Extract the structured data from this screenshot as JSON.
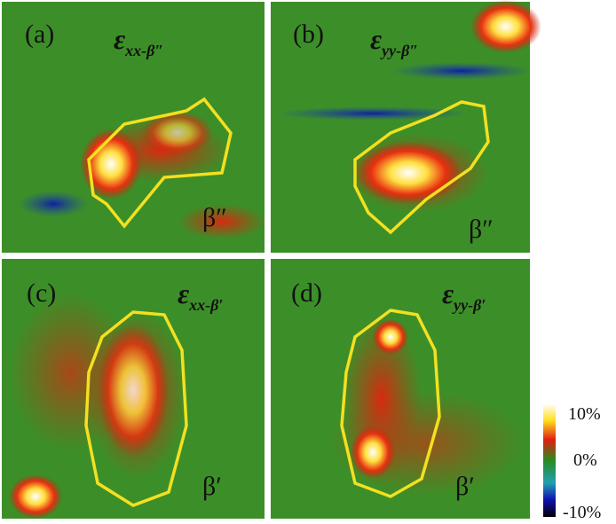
{
  "panels": [
    {
      "label": "(a)",
      "symbol": "ε",
      "subscript": "xx-β″",
      "phase": "β″"
    },
    {
      "label": "(b)",
      "symbol": "ε",
      "subscript": "yy-β″",
      "phase": "β″"
    },
    {
      "label": "(c)",
      "symbol": "ε",
      "subscript": "xx-β′",
      "phase": "β′"
    },
    {
      "label": "(d)",
      "symbol": "ε",
      "subscript": "yy-β′",
      "phase": "β′"
    }
  ],
  "colorbar": {
    "ticks": [
      "10%",
      "0%",
      "-10%"
    ]
  }
}
